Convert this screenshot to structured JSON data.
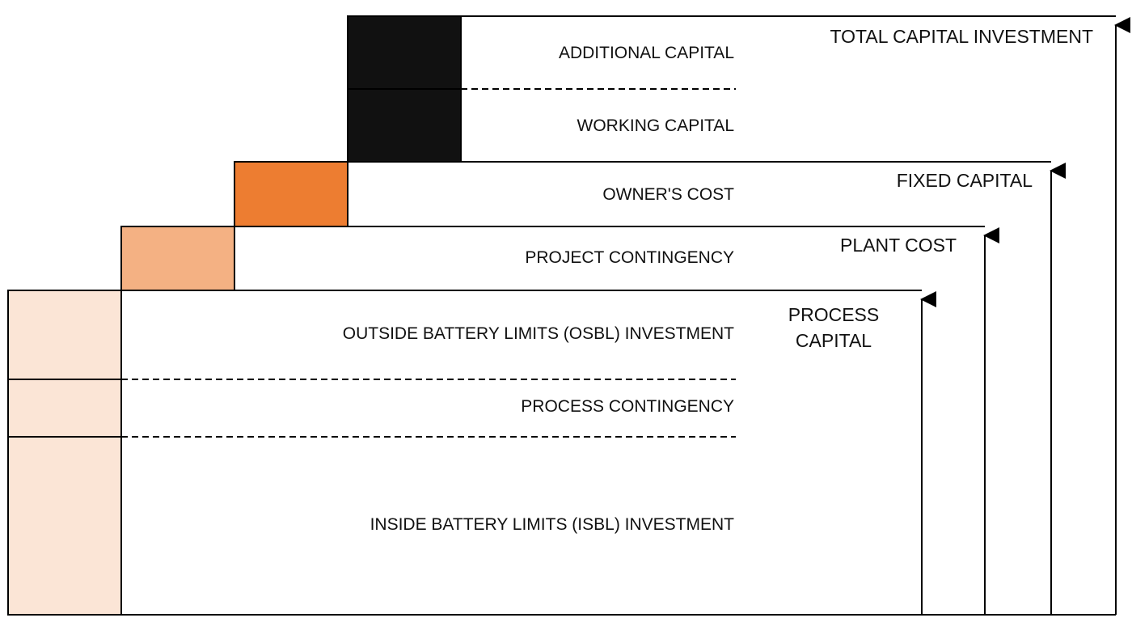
{
  "colors": {
    "black_block": "#111111",
    "orange_block": "#ED7D31",
    "light_orange_block": "#F4B183",
    "pale_orange_block": "#FBE5D6",
    "line": "#000000"
  },
  "layers": {
    "additional_capital": "ADDITIONAL CAPITAL",
    "working_capital": "WORKING CAPITAL",
    "owners_cost": "OWNER'S COST",
    "project_contingency": "PROJECT CONTINGENCY",
    "osbl_investment": "OUTSIDE BATTERY LIMITS (OSBL) INVESTMENT",
    "process_contingency": "PROCESS CONTINGENCY",
    "isbl_investment": "INSIDE BATTERY LIMITS (ISBL) INVESTMENT"
  },
  "totals": {
    "total_capital_investment": "TOTAL CAPITAL INVESTMENT",
    "fixed_capital": "FIXED CAPITAL",
    "plant_cost": "PLANT COST",
    "process_capital_line1": "PROCESS",
    "process_capital_line2": "CAPITAL"
  }
}
